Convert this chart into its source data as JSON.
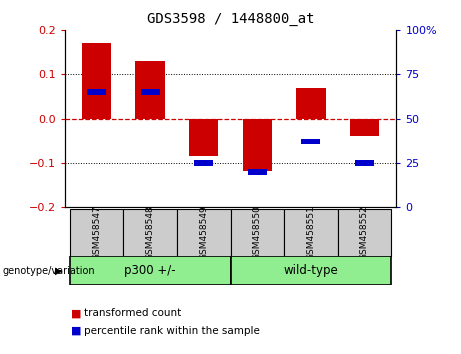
{
  "title": "GDS3598 / 1448800_at",
  "samples": [
    "GSM458547",
    "GSM458548",
    "GSM458549",
    "GSM458550",
    "GSM458551",
    "GSM458552"
  ],
  "red_values": [
    0.17,
    0.13,
    -0.085,
    -0.118,
    0.07,
    -0.04
  ],
  "blue_values_pct": [
    65,
    65,
    25,
    20,
    37,
    25
  ],
  "group_bg_color": "#90EE90",
  "sample_bg_color": "#cccccc",
  "ylim_left": [
    -0.2,
    0.2
  ],
  "ylim_right": [
    0,
    100
  ],
  "yticks_left": [
    -0.2,
    -0.1,
    0.0,
    0.1,
    0.2
  ],
  "yticks_right": [
    0,
    25,
    50,
    75,
    100
  ],
  "bar_width": 0.55,
  "red_color": "#cc0000",
  "blue_color": "#0000cc",
  "zero_line_color": "#cc0000",
  "grid_color": "black",
  "left_tick_color": "#cc0000",
  "right_tick_color": "#0000cc",
  "genotype_label": "genotype/variation",
  "legend_red": "transformed count",
  "legend_blue": "percentile rank within the sample",
  "group1_label": "p300 +/-",
  "group2_label": "wild-type"
}
